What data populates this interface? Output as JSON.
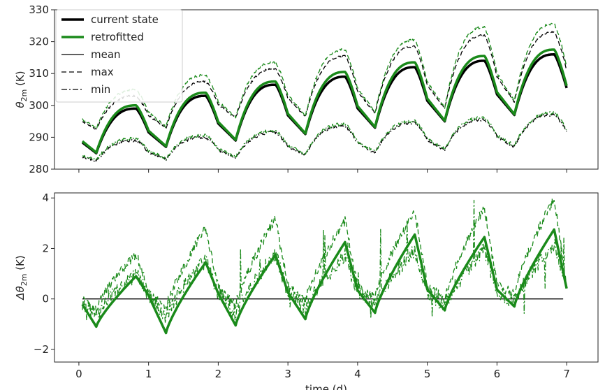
{
  "chart_data": [
    {
      "type": "line",
      "xlabel": "",
      "ylabel_main": "θ",
      "ylabel_sub": "2m",
      "ylabel_unit": " (K)",
      "xlim": [
        -0.35,
        7.45
      ],
      "ylim": [
        280,
        330
      ],
      "xticks": [
        0,
        1,
        2,
        3,
        4,
        5,
        6,
        7
      ],
      "yticks": [
        280,
        290,
        300,
        310,
        320,
        330
      ],
      "legend_placement": "upper-left",
      "legend": [
        {
          "label": "current state",
          "color": "#000000",
          "style": "solid",
          "width": 3.5
        },
        {
          "label": "retrofitted",
          "color": "#1a8a1a",
          "style": "solid",
          "width": 3.5
        },
        {
          "label": "mean",
          "color": "#000000",
          "style": "solid",
          "width": 1.3
        },
        {
          "label": "max",
          "color": "#000000",
          "style": "dashed",
          "width": 1.3
        },
        {
          "label": "min",
          "color": "#000000",
          "style": "dashdot",
          "width": 1.3
        }
      ],
      "daily_params": {
        "mean_cur_min": [
          285,
          287,
          289,
          291,
          293,
          295,
          297,
          299
        ],
        "mean_cur_max": [
          299,
          303,
          306.5,
          309,
          312,
          314,
          316,
          318.5
        ],
        "mean_ret_max": [
          300,
          304,
          307.5,
          310.5,
          313.5,
          315.5,
          317.5,
          320.5
        ],
        "max_cur_min": [
          292.5,
          293,
          296,
          296.5,
          297.5,
          299,
          301,
          304
        ],
        "max_cur_max": [
          303,
          307.5,
          311.5,
          315.5,
          318.5,
          322,
          323,
          325
        ],
        "max_ret_max": [
          305,
          309.5,
          313.5,
          317.5,
          320.5,
          324.5,
          325.5,
          327.5
        ],
        "min_min": [
          282.5,
          283,
          283.5,
          284.5,
          285,
          286,
          287,
          289
        ],
        "min_max": [
          289,
          290,
          291.5,
          293.5,
          294.5,
          295.5,
          297,
          297.5
        ]
      },
      "series": [
        {
          "name": "current state mean",
          "color": "#000000",
          "style": "solid",
          "width": 3.5
        },
        {
          "name": "retrofitted mean",
          "color": "#1a8a1a",
          "style": "solid",
          "width": 3.5
        },
        {
          "name": "current state max",
          "color": "#000000",
          "style": "dashed",
          "width": 1.3
        },
        {
          "name": "retrofitted max",
          "color": "#1a8a1a",
          "style": "dashed",
          "width": 1.3
        },
        {
          "name": "current state min",
          "color": "#000000",
          "style": "dashdot",
          "width": 1.3
        },
        {
          "name": "retrofitted min",
          "color": "#1a8a1a",
          "style": "dashdot",
          "width": 1.3
        }
      ]
    },
    {
      "type": "line",
      "xlabel": "time (d)",
      "ylabel_main": "Δθ",
      "ylabel_sub": "2m",
      "ylabel_unit": " (K)",
      "xlim": [
        -0.35,
        7.45
      ],
      "ylim": [
        -2.5,
        4.2
      ],
      "xticks": [
        0,
        1,
        2,
        3,
        4,
        5,
        6,
        7
      ],
      "yticks": [
        -2,
        0,
        2,
        4
      ],
      "zero_line": {
        "y": 0,
        "color": "#000000"
      },
      "daily_params": {
        "mean_min": [
          -1.1,
          -1.35,
          -1.05,
          -0.8,
          -0.55,
          -0.45,
          -0.3,
          0
        ],
        "mean_max": [
          0.9,
          1.45,
          1.75,
          2.25,
          2.55,
          2.45,
          2.75,
          0
        ],
        "max_min": [
          -0.4,
          -0.4,
          -0.3,
          -0.1,
          0.1,
          0.0,
          0.2,
          0
        ],
        "max_max": [
          1.8,
          2.8,
          3.2,
          3.1,
          3.5,
          3.6,
          4.0,
          0
        ],
        "min_spikes": [
          1.6,
          2.5,
          2.9,
          3.0,
          3.7,
          3.7,
          3.8,
          0
        ]
      },
      "series": [
        {
          "name": "Δ mean",
          "color": "#1a8a1a",
          "style": "solid",
          "width": 3.5
        },
        {
          "name": "Δ max",
          "color": "#1a8a1a",
          "style": "dashed",
          "width": 1.3
        },
        {
          "name": "Δ min",
          "color": "#1a8a1a",
          "style": "dashdot",
          "width": 1.3
        }
      ]
    }
  ]
}
